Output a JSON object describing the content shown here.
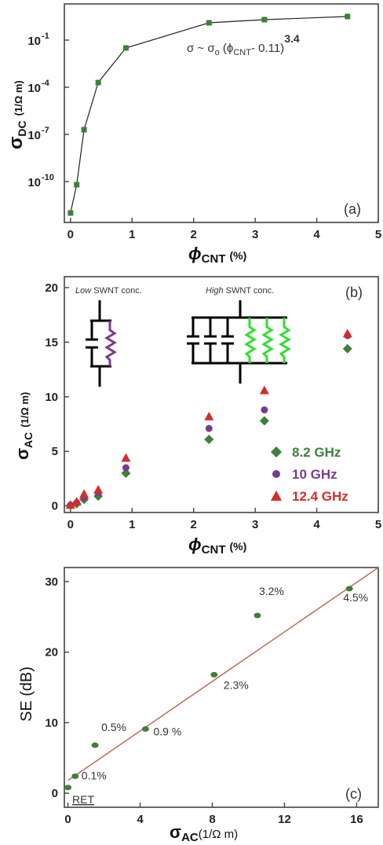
{
  "colors": {
    "green": "#3e7f3a",
    "purple": "#7a3c8c",
    "red": "#d62b2b",
    "line_c": "#c06a5a",
    "bright_green": "#33dd33"
  },
  "chart_data": [
    {
      "id": "a",
      "type": "line",
      "panel_label": "(a)",
      "xlabel": "ϕ",
      "xlabel_sub": "CNT",
      "xlabel_unit": "(%)",
      "ylabel": "σ",
      "ylabel_sub": "DC",
      "ylabel_unit": "(1/Ω m)",
      "x_scale": "linear",
      "y_scale": "log",
      "xlim": [
        -0.1,
        5
      ],
      "ylim_log10": [
        -12.6,
        1.3
      ],
      "x_ticks": [
        0,
        1,
        2,
        3,
        4,
        5
      ],
      "x_tick_labels": [
        "0",
        "1",
        "2",
        "3",
        "4",
        "5"
      ],
      "y_ticks_log10": [
        -10,
        -7,
        -4,
        -1
      ],
      "y_tick_bases": [
        "10",
        "10",
        "10",
        "10"
      ],
      "y_tick_exps": [
        "-10",
        "-7",
        "-4",
        "-1"
      ],
      "annotation": {
        "pre": "σ ~ σ",
        "sub_o": "o",
        "mid": " (ϕ",
        "sub_cnt": "CNT",
        "post": "- 0.11)",
        "exponent": "3.4"
      },
      "x": [
        0,
        0.1,
        0.22,
        0.45,
        0.9,
        2.25,
        3.15,
        4.5
      ],
      "y_log10": [
        -12.0,
        -10.2,
        -6.7,
        -3.7,
        -1.5,
        0.1,
        0.3,
        0.5
      ]
    },
    {
      "id": "b",
      "type": "scatter",
      "panel_label": "(b)",
      "xlabel": "ϕ",
      "xlabel_sub": "CNT",
      "xlabel_unit": "(%)",
      "ylabel": "σ",
      "ylabel_sub": "AC",
      "ylabel_unit": "(1/Ω m)",
      "xlim": [
        -0.1,
        5
      ],
      "ylim": [
        -0.6,
        21
      ],
      "x_ticks": [
        0,
        1,
        2,
        3,
        4,
        5
      ],
      "x_tick_labels": [
        "0",
        "1",
        "2",
        "3",
        "4",
        "5"
      ],
      "y_ticks": [
        0,
        5,
        10,
        15,
        20
      ],
      "y_tick_labels": [
        "0",
        "5",
        "10",
        "15",
        "20"
      ],
      "legend_position": "bottom-right",
      "inset_low": {
        "italic": "Low",
        "rest": " SWNT conc."
      },
      "inset_high": {
        "italic": "High",
        "rest": " SWNT conc."
      },
      "series": [
        {
          "name": "8.2 GHz",
          "marker": "diamond",
          "x": [
            0,
            0.1,
            0.22,
            0.45,
            0.9,
            2.25,
            3.15,
            4.5
          ],
          "values": [
            0.05,
            0.2,
            0.6,
            0.9,
            3.0,
            6.1,
            7.8,
            14.4
          ]
        },
        {
          "name": "10 GHz",
          "marker": "circle",
          "x": [
            0,
            0.1,
            0.22,
            0.45,
            0.9,
            2.25,
            3.15,
            4.5
          ],
          "values": [
            0.08,
            0.3,
            0.8,
            1.2,
            3.5,
            7.1,
            8.8,
            15.6
          ]
        },
        {
          "name": "12.4 GHz",
          "marker": "triangle",
          "x": [
            0,
            0.1,
            0.22,
            0.45,
            0.9,
            2.25,
            3.15,
            4.5
          ],
          "values": [
            0.1,
            0.4,
            1.1,
            1.5,
            4.4,
            8.2,
            10.6,
            15.8
          ]
        }
      ]
    },
    {
      "id": "c",
      "type": "scatter",
      "panel_label": "(c)",
      "xlabel": "σ",
      "xlabel_sub": "AC",
      "xlabel_unit": "(1/Ω m)",
      "ylabel": "SE (dB)",
      "xlim": [
        -0.2,
        17.2
      ],
      "ylim": [
        -2,
        32
      ],
      "x_ticks": [
        0,
        4,
        8,
        12,
        16
      ],
      "x_tick_labels": [
        "0",
        "4",
        "8",
        "12",
        "16"
      ],
      "y_ticks": [
        0,
        10,
        20,
        30
      ],
      "y_tick_labels": [
        "0",
        "10",
        "20",
        "30"
      ],
      "ret_label": "RET",
      "fit_line": {
        "x": [
          0,
          17.2
        ],
        "y": [
          1.8,
          32.5
        ]
      },
      "points": [
        {
          "x": 0.0,
          "y": 0.8,
          "label": ""
        },
        {
          "x": 0.4,
          "y": 2.4,
          "label": "0.1%"
        },
        {
          "x": 1.5,
          "y": 6.8,
          "label": "0.5%"
        },
        {
          "x": 4.3,
          "y": 9.1,
          "label": "0.9 %"
        },
        {
          "x": 8.1,
          "y": 16.8,
          "label": "2.3%"
        },
        {
          "x": 10.5,
          "y": 25.2,
          "label": "3.2%"
        },
        {
          "x": 15.6,
          "y": 29.0,
          "label": "4.5%"
        }
      ]
    }
  ]
}
